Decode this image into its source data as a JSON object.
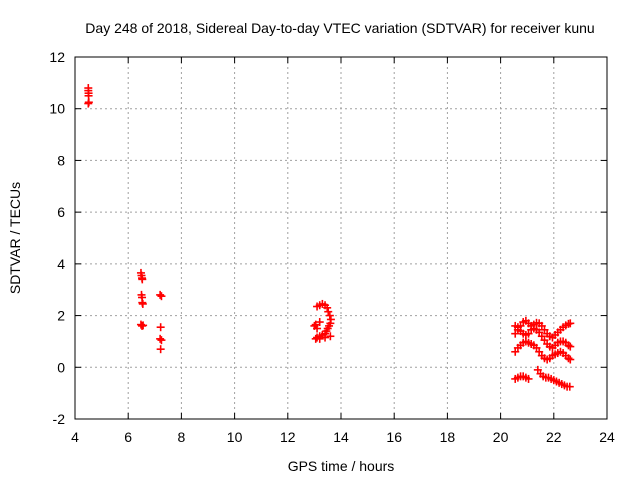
{
  "chart_data": {
    "type": "scatter",
    "title": "Day 248 of 2018, Sidereal Day-to-day VTEC variation (SDTVAR) for receiver kunu",
    "xlabel": "GPS time / hours",
    "ylabel": "SDTVAR / TECUs",
    "xlim": [
      4,
      24
    ],
    "ylim": [
      -2,
      12
    ],
    "xticks": [
      4,
      6,
      8,
      10,
      12,
      14,
      16,
      18,
      20,
      22,
      24
    ],
    "yticks": [
      -2,
      0,
      2,
      4,
      6,
      8,
      10,
      12
    ],
    "xtick_labels": [
      "4",
      "6",
      "8",
      "10",
      "12",
      "14",
      "16",
      "18",
      "20",
      "22",
      "24"
    ],
    "ytick_labels": [
      "-2",
      "0",
      "2",
      "4",
      "6",
      "8",
      "10",
      "12"
    ],
    "grid": true,
    "marker": "plus",
    "color": "#ff0000",
    "series": [
      {
        "name": "SDTVAR",
        "points": [
          [
            4.5,
            10.8
          ],
          [
            4.5,
            10.7
          ],
          [
            4.51,
            10.6
          ],
          [
            4.51,
            10.5
          ],
          [
            4.52,
            10.25
          ],
          [
            4.5,
            10.2
          ],
          [
            6.48,
            3.65
          ],
          [
            6.5,
            3.55
          ],
          [
            6.52,
            3.45
          ],
          [
            6.53,
            3.4
          ],
          [
            6.5,
            2.8
          ],
          [
            6.52,
            2.7
          ],
          [
            6.53,
            2.5
          ],
          [
            6.55,
            2.45
          ],
          [
            6.48,
            1.65
          ],
          [
            6.52,
            1.6
          ],
          [
            6.56,
            1.62
          ],
          [
            7.2,
            2.8
          ],
          [
            7.25,
            2.75
          ],
          [
            7.22,
            1.55
          ],
          [
            7.2,
            1.1
          ],
          [
            7.25,
            1.05
          ],
          [
            7.22,
            0.7
          ],
          [
            13.1,
            2.35
          ],
          [
            13.2,
            2.4
          ],
          [
            13.3,
            2.45
          ],
          [
            13.4,
            2.4
          ],
          [
            13.48,
            2.3
          ],
          [
            13.52,
            2.15
          ],
          [
            13.58,
            2.0
          ],
          [
            13.62,
            1.85
          ],
          [
            13.6,
            1.7
          ],
          [
            13.55,
            1.6
          ],
          [
            13.5,
            1.5
          ],
          [
            13.45,
            1.4
          ],
          [
            13.4,
            1.3
          ],
          [
            13.3,
            1.25
          ],
          [
            13.2,
            1.2
          ],
          [
            13.1,
            1.15
          ],
          [
            13.05,
            1.1
          ],
          [
            13.2,
            1.1
          ],
          [
            13.4,
            1.15
          ],
          [
            13.6,
            1.2
          ],
          [
            13.1,
            1.5
          ],
          [
            13.05,
            1.65
          ],
          [
            13.2,
            1.75
          ],
          [
            13.0,
            1.6
          ],
          [
            20.55,
            1.3
          ],
          [
            20.65,
            1.45
          ],
          [
            20.75,
            1.6
          ],
          [
            20.85,
            1.75
          ],
          [
            20.95,
            1.8
          ],
          [
            21.05,
            1.7
          ],
          [
            21.15,
            1.6
          ],
          [
            21.25,
            1.65
          ],
          [
            21.35,
            1.72
          ],
          [
            21.45,
            1.7
          ],
          [
            21.55,
            1.6
          ],
          [
            21.65,
            1.45
          ],
          [
            21.75,
            1.3
          ],
          [
            21.85,
            1.2
          ],
          [
            21.95,
            1.15
          ],
          [
            22.05,
            1.25
          ],
          [
            22.15,
            1.35
          ],
          [
            22.25,
            1.45
          ],
          [
            22.35,
            1.55
          ],
          [
            22.45,
            1.62
          ],
          [
            22.55,
            1.68
          ],
          [
            22.62,
            1.7
          ],
          [
            20.55,
            1.6
          ],
          [
            20.65,
            1.55
          ],
          [
            20.75,
            1.4
          ],
          [
            20.85,
            1.3
          ],
          [
            20.95,
            1.25
          ],
          [
            21.05,
            1.3
          ],
          [
            21.15,
            1.45
          ],
          [
            21.25,
            1.5
          ],
          [
            21.35,
            1.45
          ],
          [
            21.45,
            1.35
          ],
          [
            21.55,
            1.2
          ],
          [
            21.65,
            1.05
          ],
          [
            21.75,
            0.9
          ],
          [
            21.85,
            0.8
          ],
          [
            21.95,
            0.75
          ],
          [
            22.05,
            0.85
          ],
          [
            22.15,
            0.95
          ],
          [
            22.25,
            1.0
          ],
          [
            22.35,
            1.0
          ],
          [
            22.45,
            0.95
          ],
          [
            22.55,
            0.85
          ],
          [
            22.62,
            0.8
          ],
          [
            20.55,
            0.6
          ],
          [
            20.65,
            0.75
          ],
          [
            20.75,
            0.85
          ],
          [
            20.85,
            0.95
          ],
          [
            20.95,
            1.0
          ],
          [
            21.05,
            0.95
          ],
          [
            21.15,
            0.9
          ],
          [
            21.25,
            0.85
          ],
          [
            21.35,
            0.75
          ],
          [
            21.45,
            0.6
          ],
          [
            21.55,
            0.45
          ],
          [
            21.65,
            0.35
          ],
          [
            21.75,
            0.3
          ],
          [
            21.85,
            0.35
          ],
          [
            21.95,
            0.45
          ],
          [
            22.05,
            0.5
          ],
          [
            22.15,
            0.55
          ],
          [
            22.25,
            0.6
          ],
          [
            22.35,
            0.55
          ],
          [
            22.45,
            0.45
          ],
          [
            22.55,
            0.35
          ],
          [
            22.62,
            0.3
          ],
          [
            21.4,
            -0.1
          ],
          [
            21.5,
            -0.25
          ],
          [
            21.6,
            -0.35
          ],
          [
            21.7,
            -0.4
          ],
          [
            21.8,
            -0.4
          ],
          [
            21.9,
            -0.45
          ],
          [
            22.0,
            -0.5
          ],
          [
            22.1,
            -0.55
          ],
          [
            22.2,
            -0.6
          ],
          [
            22.3,
            -0.65
          ],
          [
            22.4,
            -0.7
          ],
          [
            22.5,
            -0.75
          ],
          [
            22.6,
            -0.75
          ],
          [
            20.55,
            -0.45
          ],
          [
            20.65,
            -0.4
          ],
          [
            20.75,
            -0.35
          ],
          [
            20.85,
            -0.35
          ],
          [
            20.95,
            -0.4
          ],
          [
            21.05,
            -0.45
          ]
        ]
      }
    ]
  }
}
